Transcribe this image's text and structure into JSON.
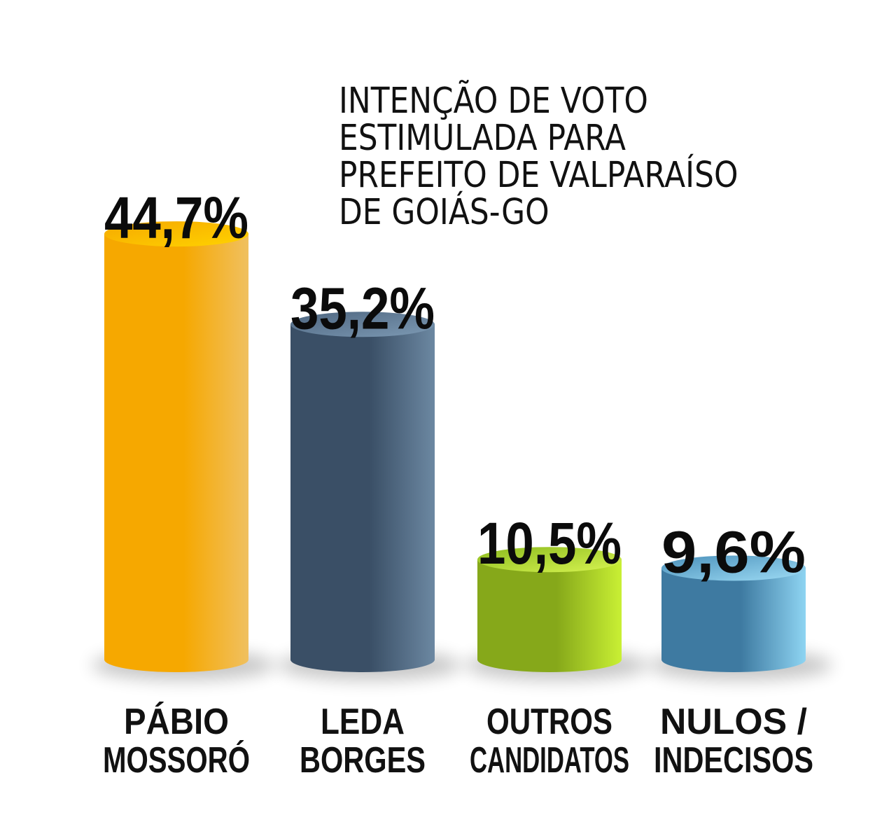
{
  "title_lines": [
    "INTENÇÃO DE VOTO",
    "ESTIMULADA PARA",
    "PREFEITO DE VALPARAÍSO",
    "DE GOIÁS-GO"
  ],
  "chart_data": {
    "type": "bar",
    "title": "INTENÇÃO DE VOTO ESTIMULADA PARA PREFEITO DE VALPARAÍSO DE GOIÁS-GO",
    "categories": [
      "PÁBIO MOSSORÓ",
      "LEDA BORGES",
      "OUTROS CANDIDATOS",
      "NULOS / INDECISOS"
    ],
    "category_lines": [
      [
        "PÁBIO",
        "MOSSORÓ"
      ],
      [
        "LEDA",
        "BORGES"
      ],
      [
        "OUTROS",
        "CANDIDATOS"
      ],
      [
        "NULOS /",
        "INDECISOS"
      ]
    ],
    "values": [
      44.7,
      35.2,
      10.5,
      9.6
    ],
    "value_labels": [
      "44,7%",
      "35,2%",
      "10,5%",
      "9,6%"
    ],
    "unit": "%",
    "colors": [
      {
        "dark": "#f6a800",
        "light": "#f0c060",
        "top_a": "#ffd300",
        "top_b": "#f6a800"
      },
      {
        "dark": "#3a4f66",
        "light": "#6c88a2",
        "top_a": "#7d9ab4",
        "top_b": "#4e6680"
      },
      {
        "dark": "#86a81a",
        "light": "#c9f034",
        "top_a": "#d8f552",
        "top_b": "#8cba1e"
      },
      {
        "dark": "#3e7aa1",
        "light": "#8ed4f2",
        "top_a": "#9edcf5",
        "top_b": "#4a90ba"
      }
    ],
    "xlabel": "",
    "ylabel": "",
    "grid": false,
    "legend": "none"
  }
}
